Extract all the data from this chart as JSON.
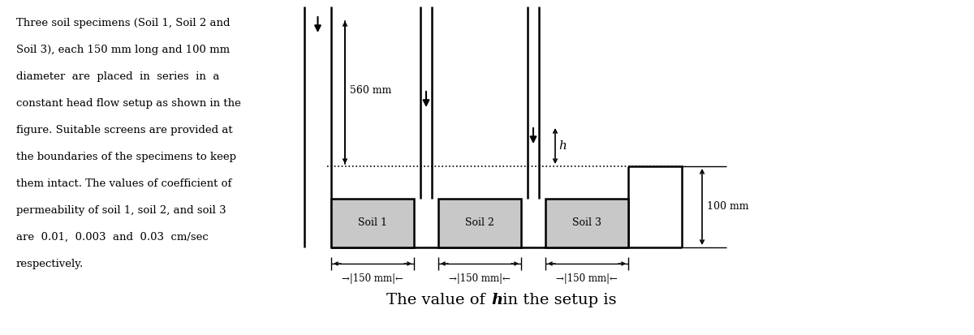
{
  "fig_width": 12.0,
  "fig_height": 4.13,
  "bg_color": "#ffffff",
  "text_color": "#000000",
  "line_color": "#000000",
  "soil_fill_color": "#c8c8c8",
  "description_lines": [
    "Three soil specimens (Soil 1, Soil 2 and",
    "Soil 3), each 150 mm long and 100 mm",
    "diameter  are  placed  in  series  in  a",
    "constant head flow setup as shown in the",
    "figure. Suitable screens are provided at",
    "the boundaries of the specimens to keep",
    "them intact. The values of coefficient of",
    "permeability of soil 1, soil 2, and soil 3",
    "are  0.01,  0.003  and  0.03  cm/sec",
    "respectively."
  ],
  "bottom_text_normal": "The value of ",
  "bottom_text_italic": "h",
  "bottom_text_end": " in the setup is",
  "label_560": "560 mm",
  "label_h": "h",
  "label_100mm": "100 mm",
  "soil_labels": [
    "Soil 1",
    "Soil 2",
    "Soil 3"
  ],
  "dim_label": "150 mm"
}
